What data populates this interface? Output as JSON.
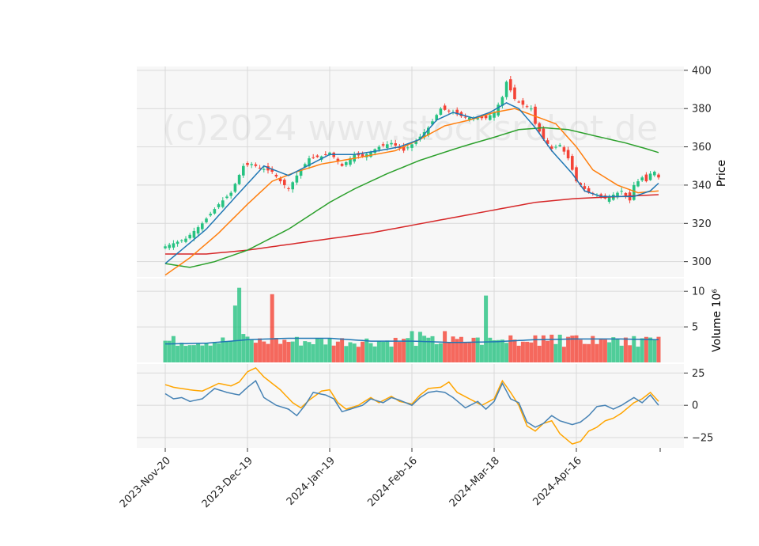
{
  "chart_data": {
    "type": "candlestick",
    "watermark": "(c)2024 www.stocksrobot.de",
    "x_tick_labels": [
      "2023-Nov-20",
      "2023-Dec-19",
      "2024-Jan-19",
      "2024-Feb-16",
      "2024-Mar-18",
      "2024-Apr-16"
    ],
    "x_tick_index": [
      0,
      20,
      40,
      60,
      80,
      100
    ],
    "n_bars": 121,
    "colors": {
      "up": "#26c281",
      "down": "#f44336",
      "ma_short": "#1f77b4",
      "ma_mid": "#ff7f0e",
      "ma_long": "#2ca02c",
      "ma_200": "#d62728",
      "volume_ma": "#1f77b4",
      "osc_fast": "#4682b4",
      "osc_slow": "#ffa500",
      "panel_bg": "#f7f7f7",
      "grid": "#d9d9d9"
    },
    "price_panel": {
      "ylabel": "Price",
      "ylim": [
        292,
        402
      ],
      "yticks": [
        300,
        320,
        340,
        360,
        380,
        400
      ],
      "close_anchors": [
        [
          0,
          308
        ],
        [
          5,
          312
        ],
        [
          9,
          320
        ],
        [
          13,
          330
        ],
        [
          16,
          336
        ],
        [
          19,
          350
        ],
        [
          21,
          351
        ],
        [
          23,
          349
        ],
        [
          26,
          347
        ],
        [
          28,
          342
        ],
        [
          30,
          338
        ],
        [
          32,
          345
        ],
        [
          35,
          354
        ],
        [
          38,
          355
        ],
        [
          40,
          357
        ],
        [
          43,
          350
        ],
        [
          46,
          356
        ],
        [
          48,
          355
        ],
        [
          52,
          360
        ],
        [
          55,
          362
        ],
        [
          58,
          358
        ],
        [
          61,
          363
        ],
        [
          64,
          370
        ],
        [
          67,
          380
        ],
        [
          70,
          378
        ],
        [
          72,
          376
        ],
        [
          75,
          375
        ],
        [
          78,
          375
        ],
        [
          80,
          378
        ],
        [
          82,
          386
        ],
        [
          83,
          394
        ],
        [
          85,
          385
        ],
        [
          87,
          382
        ],
        [
          89,
          380
        ],
        [
          90,
          372
        ],
        [
          92,
          364
        ],
        [
          94,
          359
        ],
        [
          96,
          361
        ],
        [
          98,
          354
        ],
        [
          100,
          342
        ],
        [
          103,
          336
        ],
        [
          105,
          335
        ],
        [
          107,
          333
        ],
        [
          109,
          335
        ],
        [
          111,
          337
        ],
        [
          113,
          332
        ],
        [
          114,
          340
        ],
        [
          116,
          344
        ],
        [
          117,
          342
        ],
        [
          118,
          346
        ],
        [
          119,
          347
        ],
        [
          120,
          344
        ]
      ],
      "ma_short_anchors": [
        [
          0,
          299
        ],
        [
          10,
          317
        ],
        [
          18,
          336
        ],
        [
          24,
          350
        ],
        [
          30,
          345
        ],
        [
          40,
          356
        ],
        [
          46,
          356
        ],
        [
          52,
          358
        ],
        [
          57,
          360
        ],
        [
          62,
          364
        ],
        [
          66,
          374
        ],
        [
          70,
          378
        ],
        [
          75,
          375
        ],
        [
          79,
          378
        ],
        [
          83,
          383
        ],
        [
          86,
          380
        ],
        [
          90,
          370
        ],
        [
          94,
          358
        ],
        [
          99,
          346
        ],
        [
          102,
          337
        ],
        [
          106,
          334
        ],
        [
          110,
          334
        ],
        [
          114,
          334
        ],
        [
          118,
          337
        ],
        [
          120,
          341
        ]
      ],
      "ma_mid_anchors": [
        [
          0,
          293
        ],
        [
          6,
          302
        ],
        [
          13,
          315
        ],
        [
          20,
          330
        ],
        [
          26,
          342
        ],
        [
          32,
          347
        ],
        [
          38,
          351
        ],
        [
          46,
          354
        ],
        [
          56,
          358
        ],
        [
          62,
          364
        ],
        [
          68,
          371
        ],
        [
          74,
          374
        ],
        [
          80,
          378
        ],
        [
          85,
          380
        ],
        [
          90,
          376
        ],
        [
          95,
          372
        ],
        [
          100,
          360
        ],
        [
          104,
          348
        ],
        [
          110,
          340
        ],
        [
          115,
          336
        ],
        [
          120,
          337
        ]
      ],
      "ma_long_anchors": [
        [
          0,
          299
        ],
        [
          6,
          297
        ],
        [
          12,
          300
        ],
        [
          20,
          306
        ],
        [
          30,
          317
        ],
        [
          40,
          331
        ],
        [
          46,
          338
        ],
        [
          54,
          346
        ],
        [
          62,
          353
        ],
        [
          72,
          360
        ],
        [
          80,
          365
        ],
        [
          86,
          369
        ],
        [
          92,
          370
        ],
        [
          98,
          369
        ],
        [
          104,
          366
        ],
        [
          112,
          362
        ],
        [
          117,
          359
        ],
        [
          120,
          357
        ]
      ],
      "ma_200_anchors": [
        [
          0,
          304
        ],
        [
          10,
          304
        ],
        [
          20,
          306
        ],
        [
          30,
          309
        ],
        [
          40,
          312
        ],
        [
          50,
          315
        ],
        [
          60,
          319
        ],
        [
          70,
          323
        ],
        [
          80,
          327
        ],
        [
          90,
          331
        ],
        [
          100,
          333
        ],
        [
          110,
          334
        ],
        [
          120,
          335
        ]
      ]
    },
    "volume_panel": {
      "ylabel": "Volume  10⁶",
      "ylim": [
        0,
        11.8
      ],
      "yticks": [
        5,
        10
      ],
      "overrides": [
        [
          17,
          8.0
        ],
        [
          18,
          10.5
        ],
        [
          19,
          4.0
        ],
        [
          26,
          9.6
        ],
        [
          60,
          4.4
        ],
        [
          62,
          4.3
        ],
        [
          68,
          4.4
        ],
        [
          76,
          3.5
        ],
        [
          78,
          9.4
        ],
        [
          82,
          3.2
        ],
        [
          84,
          3.8
        ],
        [
          88,
          2.9
        ],
        [
          90,
          3.8
        ],
        [
          92,
          3.8
        ],
        [
          94,
          3.9
        ],
        [
          96,
          3.9
        ],
        [
          98,
          3.6
        ],
        [
          100,
          3.8
        ],
        [
          110,
          3.3
        ],
        [
          112,
          3.5
        ],
        [
          114,
          3.7
        ],
        [
          118,
          3.5
        ],
        [
          120,
          3.6
        ]
      ],
      "ma_anchors": [
        [
          0,
          2.6
        ],
        [
          10,
          2.7
        ],
        [
          20,
          3.2
        ],
        [
          30,
          3.4
        ],
        [
          40,
          3.4
        ],
        [
          50,
          3.0
        ],
        [
          60,
          3.0
        ],
        [
          70,
          2.8
        ],
        [
          80,
          2.9
        ],
        [
          90,
          3.2
        ],
        [
          100,
          3.3
        ],
        [
          110,
          3.3
        ],
        [
          120,
          3.2
        ]
      ]
    },
    "oscillator_panel": {
      "ylim": [
        -33,
        32
      ],
      "yticks": [
        -25,
        0,
        25
      ],
      "fast_anchors": [
        [
          0,
          9
        ],
        [
          2,
          5
        ],
        [
          4,
          6
        ],
        [
          6,
          3
        ],
        [
          9,
          5
        ],
        [
          12,
          13
        ],
        [
          15,
          10
        ],
        [
          18,
          8
        ],
        [
          20,
          14
        ],
        [
          22,
          19
        ],
        [
          24,
          6
        ],
        [
          27,
          0
        ],
        [
          30,
          -3
        ],
        [
          32,
          -8
        ],
        [
          34,
          0
        ],
        [
          36,
          10
        ],
        [
          39,
          8
        ],
        [
          41,
          5
        ],
        [
          43,
          -5
        ],
        [
          45,
          -3
        ],
        [
          48,
          0
        ],
        [
          50,
          5
        ],
        [
          53,
          2
        ],
        [
          55,
          6
        ],
        [
          57,
          4
        ],
        [
          60,
          0
        ],
        [
          62,
          6
        ],
        [
          64,
          10
        ],
        [
          66,
          11
        ],
        [
          68,
          10
        ],
        [
          70,
          6
        ],
        [
          73,
          -2
        ],
        [
          76,
          3
        ],
        [
          78,
          -3
        ],
        [
          80,
          3
        ],
        [
          82,
          17
        ],
        [
          84,
          5
        ],
        [
          86,
          2
        ],
        [
          88,
          -13
        ],
        [
          90,
          -17
        ],
        [
          92,
          -14
        ],
        [
          94,
          -8
        ],
        [
          96,
          -12
        ],
        [
          99,
          -15
        ],
        [
          101,
          -13
        ],
        [
          103,
          -8
        ],
        [
          105,
          -1
        ],
        [
          107,
          0
        ],
        [
          109,
          -3
        ],
        [
          111,
          0
        ],
        [
          114,
          6
        ],
        [
          116,
          2
        ],
        [
          118,
          8
        ],
        [
          120,
          0
        ]
      ],
      "slow_anchors": [
        [
          0,
          16
        ],
        [
          2,
          14
        ],
        [
          4,
          13
        ],
        [
          6,
          12
        ],
        [
          9,
          11
        ],
        [
          11,
          14
        ],
        [
          13,
          17
        ],
        [
          16,
          15
        ],
        [
          18,
          18
        ],
        [
          20,
          26
        ],
        [
          22,
          29
        ],
        [
          24,
          22
        ],
        [
          26,
          17
        ],
        [
          28,
          12
        ],
        [
          31,
          2
        ],
        [
          33,
          -2
        ],
        [
          35,
          4
        ],
        [
          38,
          11
        ],
        [
          40,
          12
        ],
        [
          42,
          2
        ],
        [
          44,
          -3
        ],
        [
          47,
          0
        ],
        [
          50,
          6
        ],
        [
          52,
          2
        ],
        [
          55,
          7
        ],
        [
          57,
          3
        ],
        [
          60,
          1
        ],
        [
          62,
          8
        ],
        [
          64,
          13
        ],
        [
          67,
          14
        ],
        [
          69,
          18
        ],
        [
          71,
          10
        ],
        [
          74,
          5
        ],
        [
          77,
          0
        ],
        [
          80,
          5
        ],
        [
          82,
          19
        ],
        [
          84,
          10
        ],
        [
          86,
          0
        ],
        [
          88,
          -16
        ],
        [
          90,
          -20
        ],
        [
          92,
          -14
        ],
        [
          94,
          -12
        ],
        [
          96,
          -22
        ],
        [
          99,
          -30
        ],
        [
          101,
          -28
        ],
        [
          103,
          -20
        ],
        [
          105,
          -17
        ],
        [
          107,
          -12
        ],
        [
          109,
          -10
        ],
        [
          111,
          -6
        ],
        [
          114,
          2
        ],
        [
          116,
          5
        ],
        [
          118,
          10
        ],
        [
          120,
          3
        ]
      ]
    }
  }
}
